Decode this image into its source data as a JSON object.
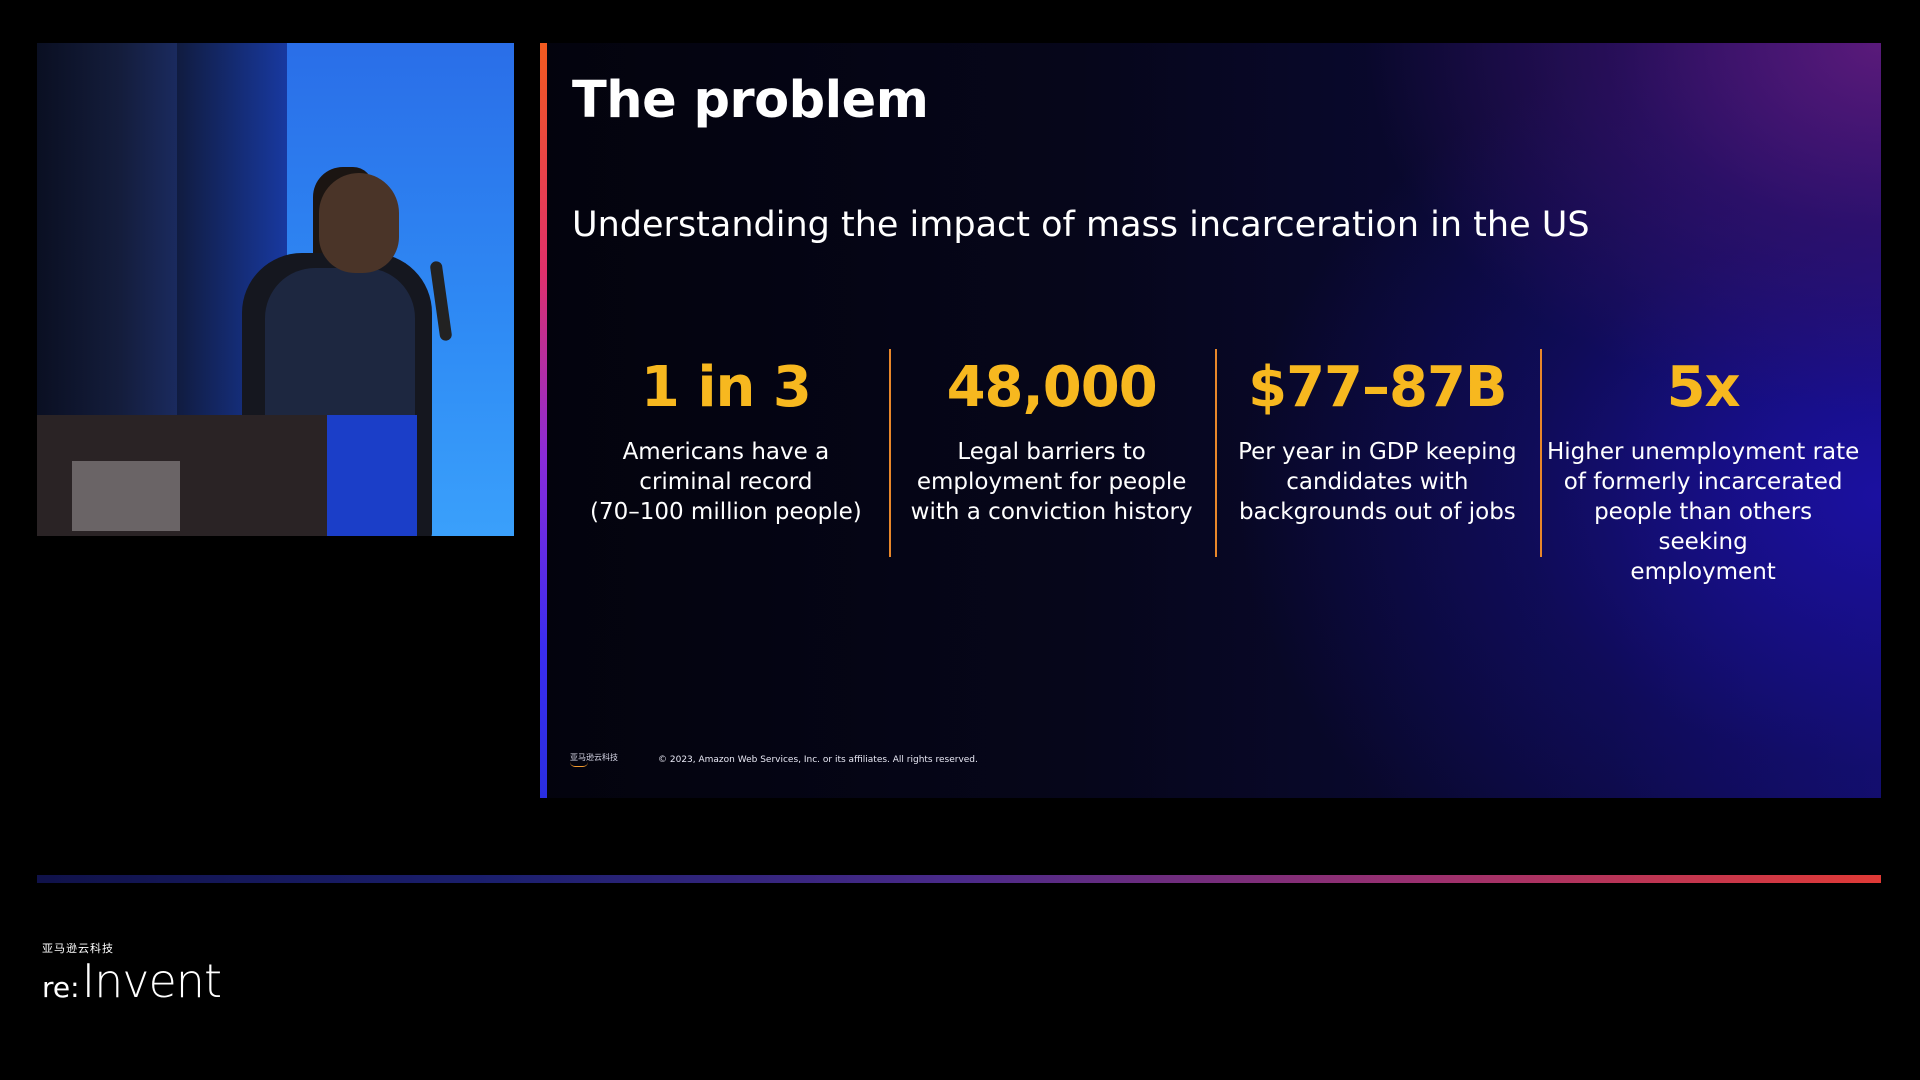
{
  "slide": {
    "title": "The problem",
    "subtitle": "Understanding the impact of mass incarceration in the US",
    "stats": [
      {
        "value": "1 in 3",
        "description": "Americans have a\ncriminal record\n(70–100 million people)"
      },
      {
        "value": "48,000",
        "description": "Legal barriers to\nemployment for people\nwith a conviction history"
      },
      {
        "value": "$77–87B",
        "description": "Per year in GDP keeping\ncandidates with\nbackgrounds out of jobs"
      },
      {
        "value": "5x",
        "description": "Higher unemployment rate\nof formerly incarcerated\npeople than others seeking\nemployment"
      }
    ],
    "footer_logo_text": "亚马逊云科技",
    "copyright": "© 2023, Amazon Web Services, Inc. or its affiliates. All rights reserved."
  },
  "branding": {
    "cn_name": "亚马逊云科技",
    "logo_prefix": "re:",
    "logo_main": "Invent"
  },
  "colors": {
    "stat_value": "#f7b81f",
    "divider": "#e8872a",
    "background": "#000000"
  }
}
